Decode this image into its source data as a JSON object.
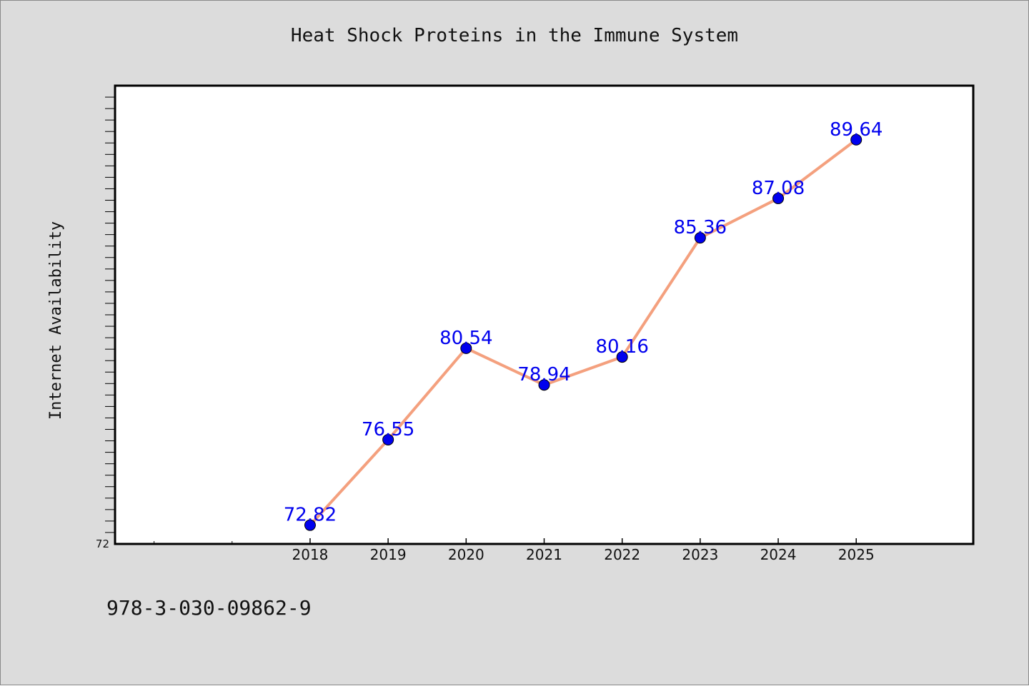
{
  "chart_data": {
    "type": "line",
    "title": "Heat Shock Proteins in the Immune System",
    "ylabel": "Internet Availability",
    "xlabel": "",
    "x": [
      "2018",
      "2019",
      "2020",
      "2021",
      "2022",
      "2023",
      "2024",
      "2025"
    ],
    "series": [
      {
        "values": [
          72.82,
          76.55,
          80.54,
          78.94,
          80.16,
          85.36,
          87.08,
          89.64
        ]
      }
    ],
    "data_labels": [
      "72.82",
      "76.55",
      "80.54",
      "78.94",
      "80.16",
      "85.36",
      "87.08",
      "89.64"
    ],
    "ylim": [
      72,
      92
    ],
    "xlim": [
      "2015.5",
      "2026.5"
    ],
    "y_tick_labels": [
      "72"
    ],
    "y_minor_step": 0.5,
    "grid": false,
    "line_color": "#f4a07e",
    "marker_color": "#0000ee",
    "label_color": "#0000ee"
  },
  "footer": {
    "isbn": "978-3-030-09862-9"
  },
  "colors": {
    "background": "#dcdcdc",
    "plot_background": "#ffffff"
  }
}
